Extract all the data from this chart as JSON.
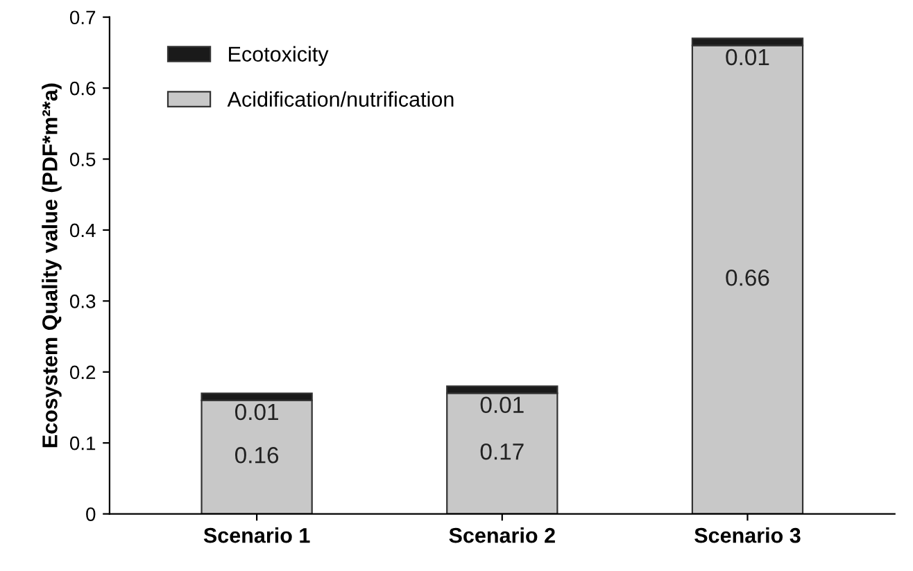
{
  "chart_data": {
    "type": "bar",
    "stacked": true,
    "ylabel": "Ecosystem Quality value (PDF*m²*a)",
    "categories": [
      "Scenario 1",
      "Scenario 2",
      "Scenario 3"
    ],
    "series": [
      {
        "name": "Acidification/nutrification",
        "color": "#c8c8c8",
        "values": [
          0.16,
          0.17,
          0.66
        ]
      },
      {
        "name": "Ecotoxicity",
        "color": "#1a1a1a",
        "values": [
          0.01,
          0.01,
          0.01
        ]
      }
    ],
    "ylim": [
      0,
      0.7
    ],
    "yticks": [
      0,
      0.1,
      0.2,
      0.3,
      0.4,
      0.5,
      0.6,
      0.7
    ],
    "data_labels": true,
    "grid": false,
    "legend": "top left"
  }
}
